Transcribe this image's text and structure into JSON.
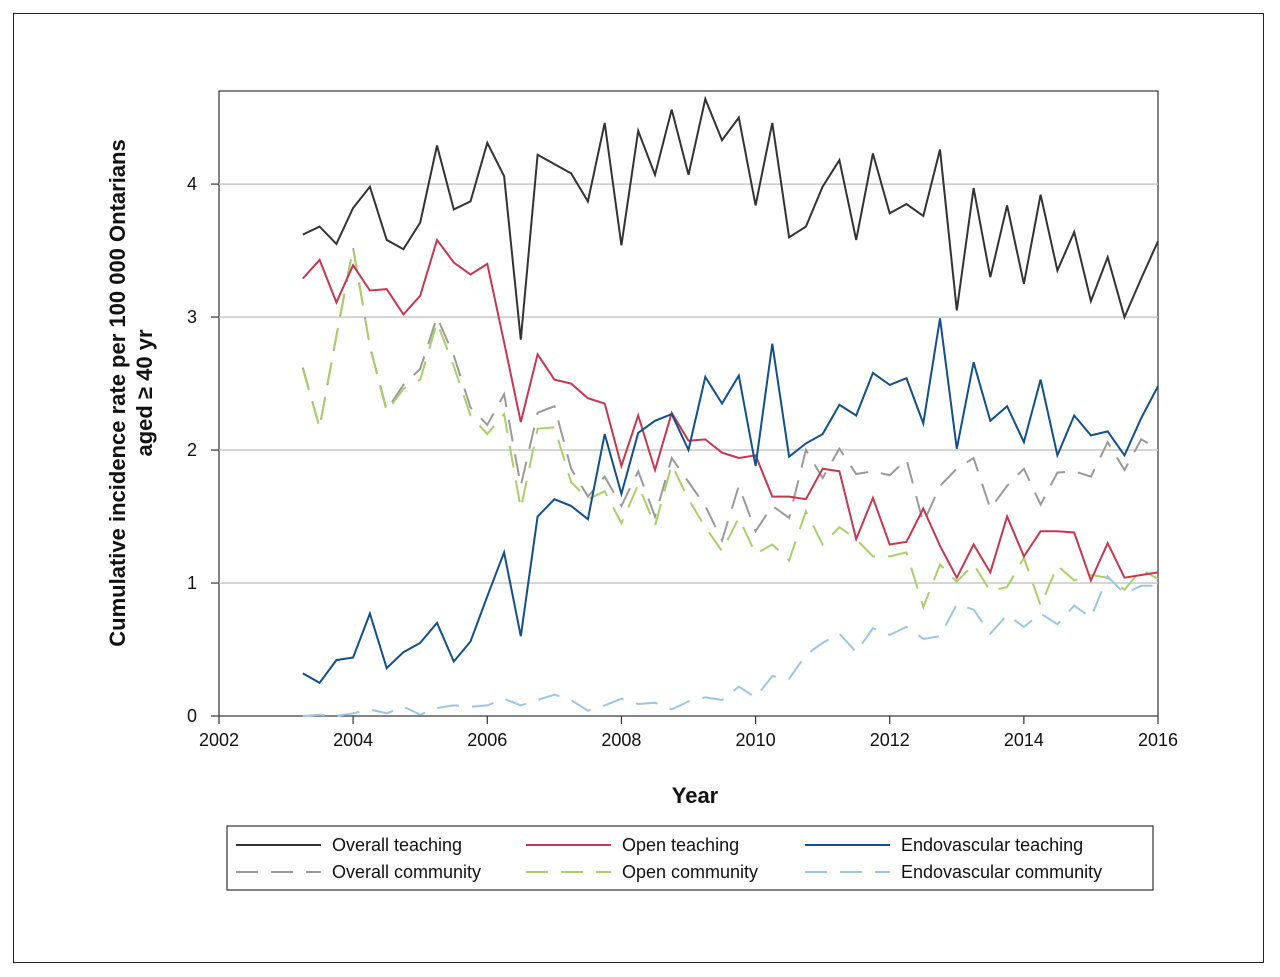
{
  "chart_data": {
    "type": "line",
    "xlabel": "Year",
    "ylabel_line1": "Cumulative incidence rate per 100 000 Ontarians",
    "ylabel_line2": "aged ≥ 40 yr",
    "xlim": [
      2002,
      2016
    ],
    "ylim": [
      0,
      4.7
    ],
    "x_ticks": [
      2002,
      2004,
      2006,
      2008,
      2010,
      2012,
      2014,
      2016
    ],
    "y_ticks": [
      0,
      1,
      2,
      3,
      4
    ],
    "grid": "horizontal",
    "legend_placement": "bottom",
    "x": [
      2003.25,
      2003.5,
      2003.75,
      2004.0,
      2004.25,
      2004.5,
      2004.75,
      2005.0,
      2005.25,
      2005.5,
      2005.75,
      2006.0,
      2006.25,
      2006.5,
      2006.75,
      2007.0,
      2007.25,
      2007.5,
      2007.75,
      2008.0,
      2008.25,
      2008.5,
      2008.75,
      2009.0,
      2009.25,
      2009.5,
      2009.75,
      2010.0,
      2010.25,
      2010.5,
      2010.75,
      2011.0,
      2011.25,
      2011.5,
      2011.75,
      2012.0,
      2012.25,
      2012.5,
      2012.75,
      2013.0,
      2013.25,
      2013.5,
      2013.75,
      2014.0,
      2014.25,
      2014.5,
      2014.75,
      2015.0,
      2015.25,
      2015.5,
      2015.75,
      2016.0
    ],
    "series": [
      {
        "name": "Overall teaching",
        "color": "#333333",
        "dash": "solid",
        "values": [
          3.62,
          3.68,
          3.55,
          3.82,
          3.98,
          3.58,
          3.51,
          3.71,
          4.29,
          3.81,
          3.87,
          4.31,
          4.06,
          2.83,
          4.22,
          4.15,
          4.08,
          3.87,
          4.46,
          3.54,
          4.4,
          4.07,
          4.56,
          4.07,
          4.64,
          4.33,
          4.5,
          3.84,
          4.46,
          3.6,
          3.68,
          3.98,
          4.18,
          3.58,
          4.23,
          3.78,
          3.85,
          3.76,
          4.26,
          3.05,
          3.97,
          3.3,
          3.84,
          3.25,
          3.92,
          3.35,
          3.64,
          3.12,
          3.45,
          3.0,
          3.29,
          3.57
        ]
      },
      {
        "name": "Open teaching",
        "color": "#c8374f",
        "dash": "solid",
        "values": [
          3.29,
          3.43,
          3.11,
          3.39,
          3.2,
          3.21,
          3.02,
          3.16,
          3.58,
          3.41,
          3.32,
          3.4,
          2.81,
          2.21,
          2.72,
          2.53,
          2.5,
          2.39,
          2.35,
          1.88,
          2.26,
          1.85,
          2.28,
          2.07,
          2.08,
          1.98,
          1.94,
          1.96,
          1.65,
          1.65,
          1.63,
          1.86,
          1.84,
          1.33,
          1.64,
          1.29,
          1.31,
          1.56,
          1.28,
          1.04,
          1.29,
          1.08,
          1.5,
          1.2,
          1.39,
          1.39,
          1.38,
          1.02,
          1.3,
          1.04,
          1.06,
          1.08
        ]
      },
      {
        "name": "Endovascular teaching",
        "color": "#11508a",
        "dash": "solid",
        "values": [
          0.32,
          0.25,
          0.42,
          0.44,
          0.77,
          0.36,
          0.48,
          0.55,
          0.7,
          0.41,
          0.56,
          0.9,
          1.23,
          0.6,
          1.5,
          1.63,
          1.58,
          1.48,
          2.12,
          1.67,
          2.13,
          2.22,
          2.27,
          2.0,
          2.55,
          2.35,
          2.56,
          1.88,
          2.8,
          1.95,
          2.05,
          2.12,
          2.34,
          2.26,
          2.58,
          2.49,
          2.54,
          2.2,
          2.99,
          2.01,
          2.66,
          2.22,
          2.33,
          2.06,
          2.53,
          1.96,
          2.26,
          2.11,
          2.14,
          1.96,
          2.24,
          2.48
        ]
      },
      {
        "name": "Overall community",
        "color": "#9a9a9a",
        "dash": "long",
        "values": [
          2.62,
          2.17,
          2.86,
          3.52,
          2.78,
          2.3,
          2.49,
          2.61,
          3.0,
          2.71,
          2.32,
          2.19,
          2.42,
          1.73,
          2.28,
          2.33,
          1.86,
          1.65,
          1.8,
          1.58,
          1.84,
          1.5,
          1.94,
          1.76,
          1.58,
          1.32,
          1.73,
          1.39,
          1.58,
          1.49,
          2.0,
          1.79,
          2.01,
          1.82,
          1.84,
          1.81,
          1.93,
          1.45,
          1.73,
          1.86,
          1.94,
          1.56,
          1.73,
          1.86,
          1.59,
          1.83,
          1.84,
          1.8,
          2.06,
          1.85,
          2.08,
          2.01
        ]
      },
      {
        "name": "Open community",
        "color": "#a9cf6a",
        "dash": "long",
        "values": [
          2.61,
          2.17,
          2.86,
          3.52,
          2.78,
          2.29,
          2.46,
          2.53,
          2.96,
          2.63,
          2.26,
          2.12,
          2.27,
          1.56,
          2.16,
          2.17,
          1.76,
          1.63,
          1.69,
          1.45,
          1.74,
          1.43,
          1.89,
          1.63,
          1.42,
          1.24,
          1.49,
          1.22,
          1.29,
          1.17,
          1.54,
          1.29,
          1.42,
          1.33,
          1.2,
          1.2,
          1.23,
          0.82,
          1.14,
          1.01,
          1.14,
          0.94,
          0.97,
          1.19,
          0.83,
          1.13,
          1.02,
          1.06,
          1.04,
          0.95,
          1.1,
          1.03
        ]
      },
      {
        "name": "Endovascular community",
        "color": "#9cc6e6",
        "dash": "long",
        "values": [
          0.0,
          0.01,
          0.0,
          0.02,
          0.05,
          0.02,
          0.07,
          0.01,
          0.06,
          0.08,
          0.07,
          0.08,
          0.13,
          0.08,
          0.12,
          0.16,
          0.12,
          0.04,
          0.08,
          0.13,
          0.09,
          0.1,
          0.05,
          0.11,
          0.14,
          0.12,
          0.22,
          0.14,
          0.3,
          0.28,
          0.46,
          0.55,
          0.62,
          0.48,
          0.66,
          0.61,
          0.67,
          0.58,
          0.6,
          0.84,
          0.8,
          0.62,
          0.76,
          0.67,
          0.77,
          0.69,
          0.83,
          0.74,
          1.05,
          0.92,
          0.98,
          0.98
        ]
      }
    ]
  }
}
